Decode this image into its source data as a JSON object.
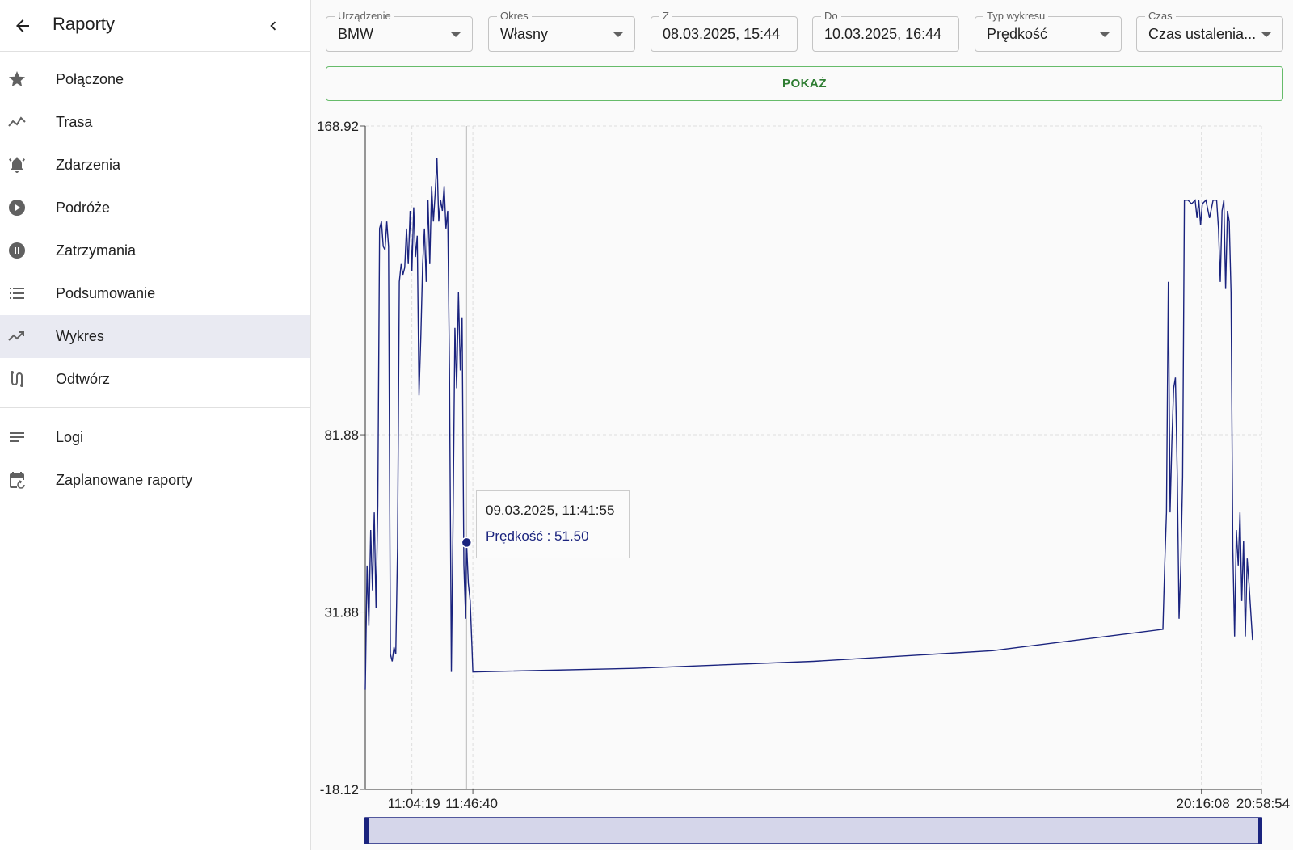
{
  "sidebar": {
    "title": "Raporty",
    "items": [
      {
        "label": "Połączone",
        "icon": "star-icon"
      },
      {
        "label": "Trasa",
        "icon": "route-icon"
      },
      {
        "label": "Zdarzenia",
        "icon": "bell-icon"
      },
      {
        "label": "Podróże",
        "icon": "play-icon"
      },
      {
        "label": "Zatrzymania",
        "icon": "pause-icon"
      },
      {
        "label": "Podsumowanie",
        "icon": "list-icon"
      },
      {
        "label": "Wykres",
        "icon": "trending-icon",
        "active": true
      },
      {
        "label": "Odtwórz",
        "icon": "replay-icon"
      }
    ],
    "extra_items": [
      {
        "label": "Logi",
        "icon": "notes-icon"
      },
      {
        "label": "Zaplanowane raporty",
        "icon": "calendar-icon"
      }
    ]
  },
  "filters": {
    "device": {
      "label": "Urządzenie",
      "value": "BMW"
    },
    "period": {
      "label": "Okres",
      "value": "Własny"
    },
    "from": {
      "label": "Z",
      "value": "08.03.2025, 15:44"
    },
    "to": {
      "label": "Do",
      "value": "10.03.2025, 16:44"
    },
    "chart_type": {
      "label": "Typ wykresu",
      "value": "Prędkość"
    },
    "time": {
      "label": "Czas",
      "value": "Czas ustalenia..."
    }
  },
  "show_button": "POKAŻ",
  "tooltip": {
    "time": "09.03.2025, 11:41:55",
    "line": "Prędkość : 51.50"
  },
  "colors": {
    "line": "#1a237e",
    "accent_green": "#2e7d32",
    "active_item": "#e9eaf2"
  },
  "chart_data": {
    "type": "line",
    "series_name": "Prędkość",
    "y_ticks": [
      "168.92",
      "81.88",
      "31.88",
      "-18.12"
    ],
    "ylim": [
      -18.12,
      168.92
    ],
    "x_ticks": [
      "11:04:19",
      "11:46:40",
      "20:16:08",
      "20:58:54"
    ],
    "x_tick_fractions": [
      0.052,
      0.12,
      0.933,
      1.0
    ],
    "hover_fraction": 0.113,
    "hover_value": 51.5,
    "points": [
      [
        0.0,
        10
      ],
      [
        0.002,
        45
      ],
      [
        0.004,
        28
      ],
      [
        0.006,
        55
      ],
      [
        0.008,
        38
      ],
      [
        0.01,
        60
      ],
      [
        0.012,
        33
      ],
      [
        0.014,
        62
      ],
      [
        0.016,
        140
      ],
      [
        0.018,
        142
      ],
      [
        0.02,
        135
      ],
      [
        0.022,
        134
      ],
      [
        0.024,
        142
      ],
      [
        0.026,
        135
      ],
      [
        0.028,
        20
      ],
      [
        0.03,
        18
      ],
      [
        0.032,
        22
      ],
      [
        0.034,
        20
      ],
      [
        0.036,
        50
      ],
      [
        0.038,
        125
      ],
      [
        0.04,
        130
      ],
      [
        0.042,
        127
      ],
      [
        0.044,
        129
      ],
      [
        0.046,
        140
      ],
      [
        0.048,
        130
      ],
      [
        0.05,
        145
      ],
      [
        0.052,
        128
      ],
      [
        0.054,
        146
      ],
      [
        0.056,
        132
      ],
      [
        0.058,
        138
      ],
      [
        0.06,
        93
      ],
      [
        0.062,
        110
      ],
      [
        0.064,
        130
      ],
      [
        0.066,
        140
      ],
      [
        0.068,
        125
      ],
      [
        0.07,
        148
      ],
      [
        0.072,
        130
      ],
      [
        0.074,
        152
      ],
      [
        0.076,
        142
      ],
      [
        0.078,
        150
      ],
      [
        0.08,
        160
      ],
      [
        0.082,
        142
      ],
      [
        0.084,
        148
      ],
      [
        0.086,
        145
      ],
      [
        0.088,
        152
      ],
      [
        0.09,
        140
      ],
      [
        0.092,
        145
      ],
      [
        0.094,
        100
      ],
      [
        0.096,
        15
      ],
      [
        0.098,
        60
      ],
      [
        0.1,
        112
      ],
      [
        0.102,
        95
      ],
      [
        0.104,
        122
      ],
      [
        0.106,
        100
      ],
      [
        0.108,
        115
      ],
      [
        0.11,
        45
      ],
      [
        0.112,
        30
      ],
      [
        0.113,
        51.5
      ],
      [
        0.115,
        40
      ],
      [
        0.117,
        35
      ],
      [
        0.119,
        22
      ],
      [
        0.12,
        15
      ],
      [
        0.3,
        16
      ],
      [
        0.5,
        18
      ],
      [
        0.7,
        21
      ],
      [
        0.89,
        27
      ],
      [
        0.892,
        45
      ],
      [
        0.894,
        60
      ],
      [
        0.896,
        125
      ],
      [
        0.898,
        60
      ],
      [
        0.9,
        80
      ],
      [
        0.902,
        95
      ],
      [
        0.904,
        98
      ],
      [
        0.906,
        70
      ],
      [
        0.908,
        30
      ],
      [
        0.91,
        45
      ],
      [
        0.912,
        70
      ],
      [
        0.914,
        148
      ],
      [
        0.918,
        148
      ],
      [
        0.922,
        147
      ],
      [
        0.926,
        148
      ],
      [
        0.928,
        143
      ],
      [
        0.93,
        148
      ],
      [
        0.932,
        141
      ],
      [
        0.934,
        147
      ],
      [
        0.938,
        148
      ],
      [
        0.942,
        143
      ],
      [
        0.946,
        148
      ],
      [
        0.95,
        148
      ],
      [
        0.952,
        140
      ],
      [
        0.954,
        125
      ],
      [
        0.956,
        145
      ],
      [
        0.958,
        148
      ],
      [
        0.96,
        123
      ],
      [
        0.962,
        145
      ],
      [
        0.964,
        142
      ],
      [
        0.966,
        122
      ],
      [
        0.968,
        50
      ],
      [
        0.97,
        25
      ],
      [
        0.972,
        55
      ],
      [
        0.974,
        45
      ],
      [
        0.976,
        60
      ],
      [
        0.978,
        35
      ],
      [
        0.98,
        52
      ],
      [
        0.982,
        25
      ],
      [
        0.984,
        47
      ],
      [
        0.986,
        40
      ],
      [
        0.99,
        24
      ]
    ]
  }
}
